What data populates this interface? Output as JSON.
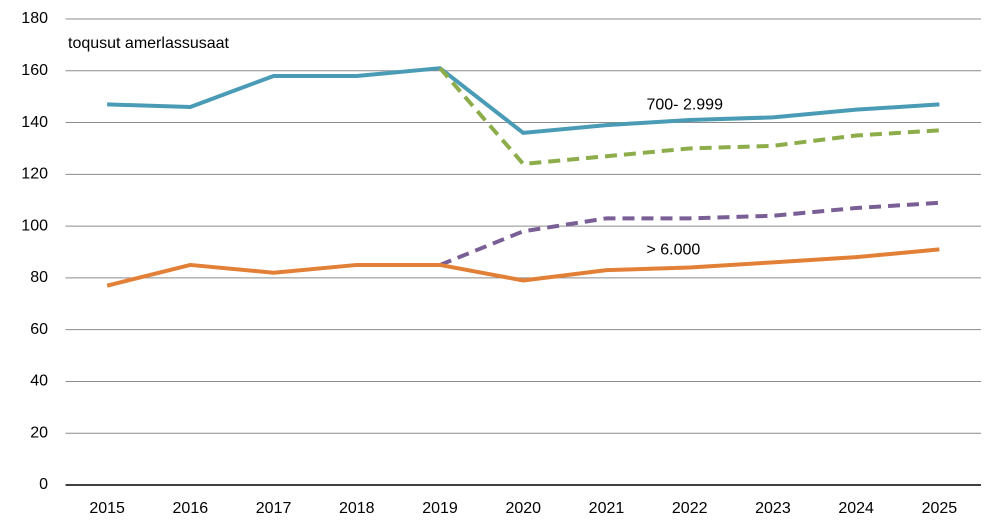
{
  "chart_data": {
    "type": "line",
    "y_label": "toqusut amerlassusaat",
    "categories": [
      "2015",
      "2016",
      "2017",
      "2018",
      "2019",
      "2020",
      "2021",
      "2022",
      "2023",
      "2024",
      "2025"
    ],
    "series": [
      {
        "name": "700- 2.999",
        "color": "#4a9bb5",
        "dashed": false,
        "values": [
          147,
          146,
          158,
          158,
          161,
          136,
          139,
          141,
          142,
          145,
          147
        ]
      },
      {
        "color": "#8cad4a",
        "dashed": true,
        "values": [
          null,
          null,
          null,
          null,
          161,
          124,
          127,
          130,
          131,
          135,
          137
        ]
      },
      {
        "color": "#7a5e96",
        "dashed": true,
        "values": [
          null,
          null,
          null,
          null,
          85,
          98,
          103,
          103,
          104,
          107,
          109
        ]
      },
      {
        "name": "> 6.000",
        "color": "#e28038",
        "dashed": false,
        "values": [
          77,
          85,
          82,
          85,
          85,
          79,
          83,
          84,
          86,
          88,
          91
        ]
      }
    ],
    "ylim": [
      0,
      180
    ],
    "yticks": [
      0,
      20,
      40,
      60,
      80,
      100,
      120,
      140,
      160,
      180
    ],
    "grid": true
  }
}
